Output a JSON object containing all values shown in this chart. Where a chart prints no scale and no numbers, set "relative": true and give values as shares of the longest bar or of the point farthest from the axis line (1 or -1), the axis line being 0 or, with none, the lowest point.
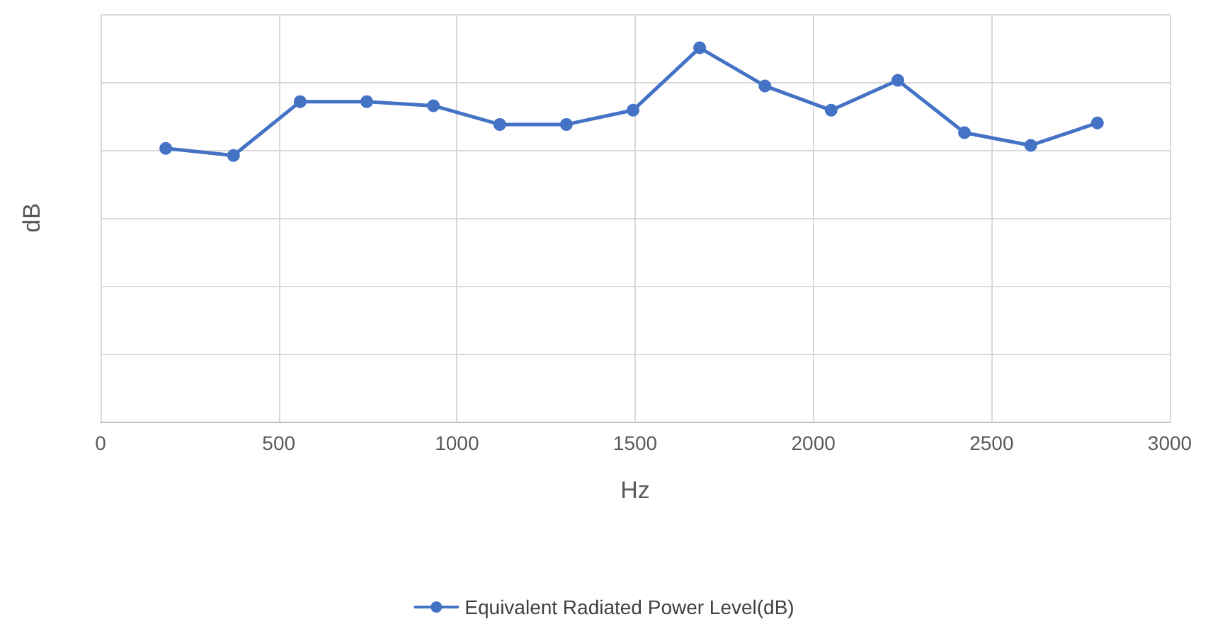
{
  "chart_data": {
    "type": "line",
    "xlabel": "Hz",
    "ylabel": "dB",
    "relative": true,
    "x": [
      183,
      373,
      560,
      747,
      934,
      1120,
      1307,
      1494,
      1681,
      1864,
      2050,
      2237,
      2424,
      2610,
      2797
    ],
    "series": [
      {
        "name": "Equivalent Radiated Power Level(dB)",
        "color": "#4472c4",
        "values": [
          0.731,
          0.712,
          0.856,
          0.856,
          0.845,
          0.795,
          0.795,
          0.833,
          1.0,
          0.898,
          0.833,
          0.913,
          0.773,
          0.739,
          0.799
        ]
      }
    ],
    "xlim": [
      0,
      3000
    ],
    "xticks": [
      0,
      500,
      1000,
      1500,
      2000,
      2500,
      3000
    ],
    "grid": true,
    "legend": "bottom",
    "marker": "circle",
    "line_style": "solid"
  }
}
